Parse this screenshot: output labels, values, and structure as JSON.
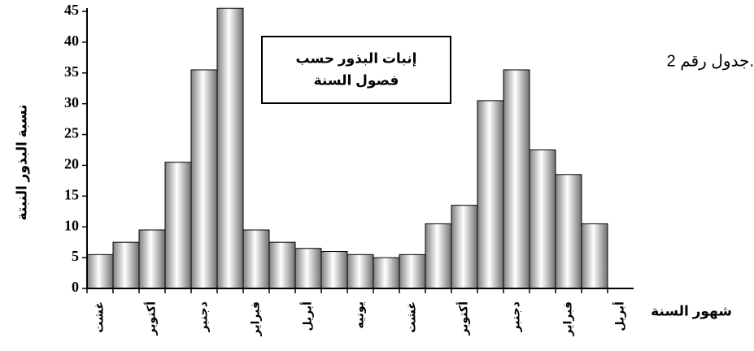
{
  "chart_data": {
    "type": "bar",
    "title": [
      "إنبات البذور حسب",
      "فصول السنة"
    ],
    "caption": "جدول رقم 2.",
    "y_label": "نسبة البذور النبتة",
    "x_label": "شهور السنة",
    "categories": [
      "غشت",
      null,
      "أكتوبر",
      null,
      "دجنبر",
      null,
      "فبراير",
      null,
      "أبريل",
      null,
      "يونيه",
      null,
      "غشت",
      null,
      "أكتوبر",
      null,
      "دجنبر",
      null,
      "فبراير",
      null,
      "أبريل"
    ],
    "values": [
      5.5,
      7.5,
      9.5,
      20.5,
      35.5,
      45.5,
      9.5,
      7.5,
      6.5,
      6,
      5.5,
      5,
      5.5,
      10.5,
      13.5,
      30.5,
      35.5,
      22.5,
      18.5,
      10.5,
      0
    ],
    "ylim": [
      0,
      45
    ],
    "yticks": [
      0,
      5,
      10,
      15,
      20,
      25,
      30,
      35,
      40,
      45
    ],
    "grid": false
  }
}
